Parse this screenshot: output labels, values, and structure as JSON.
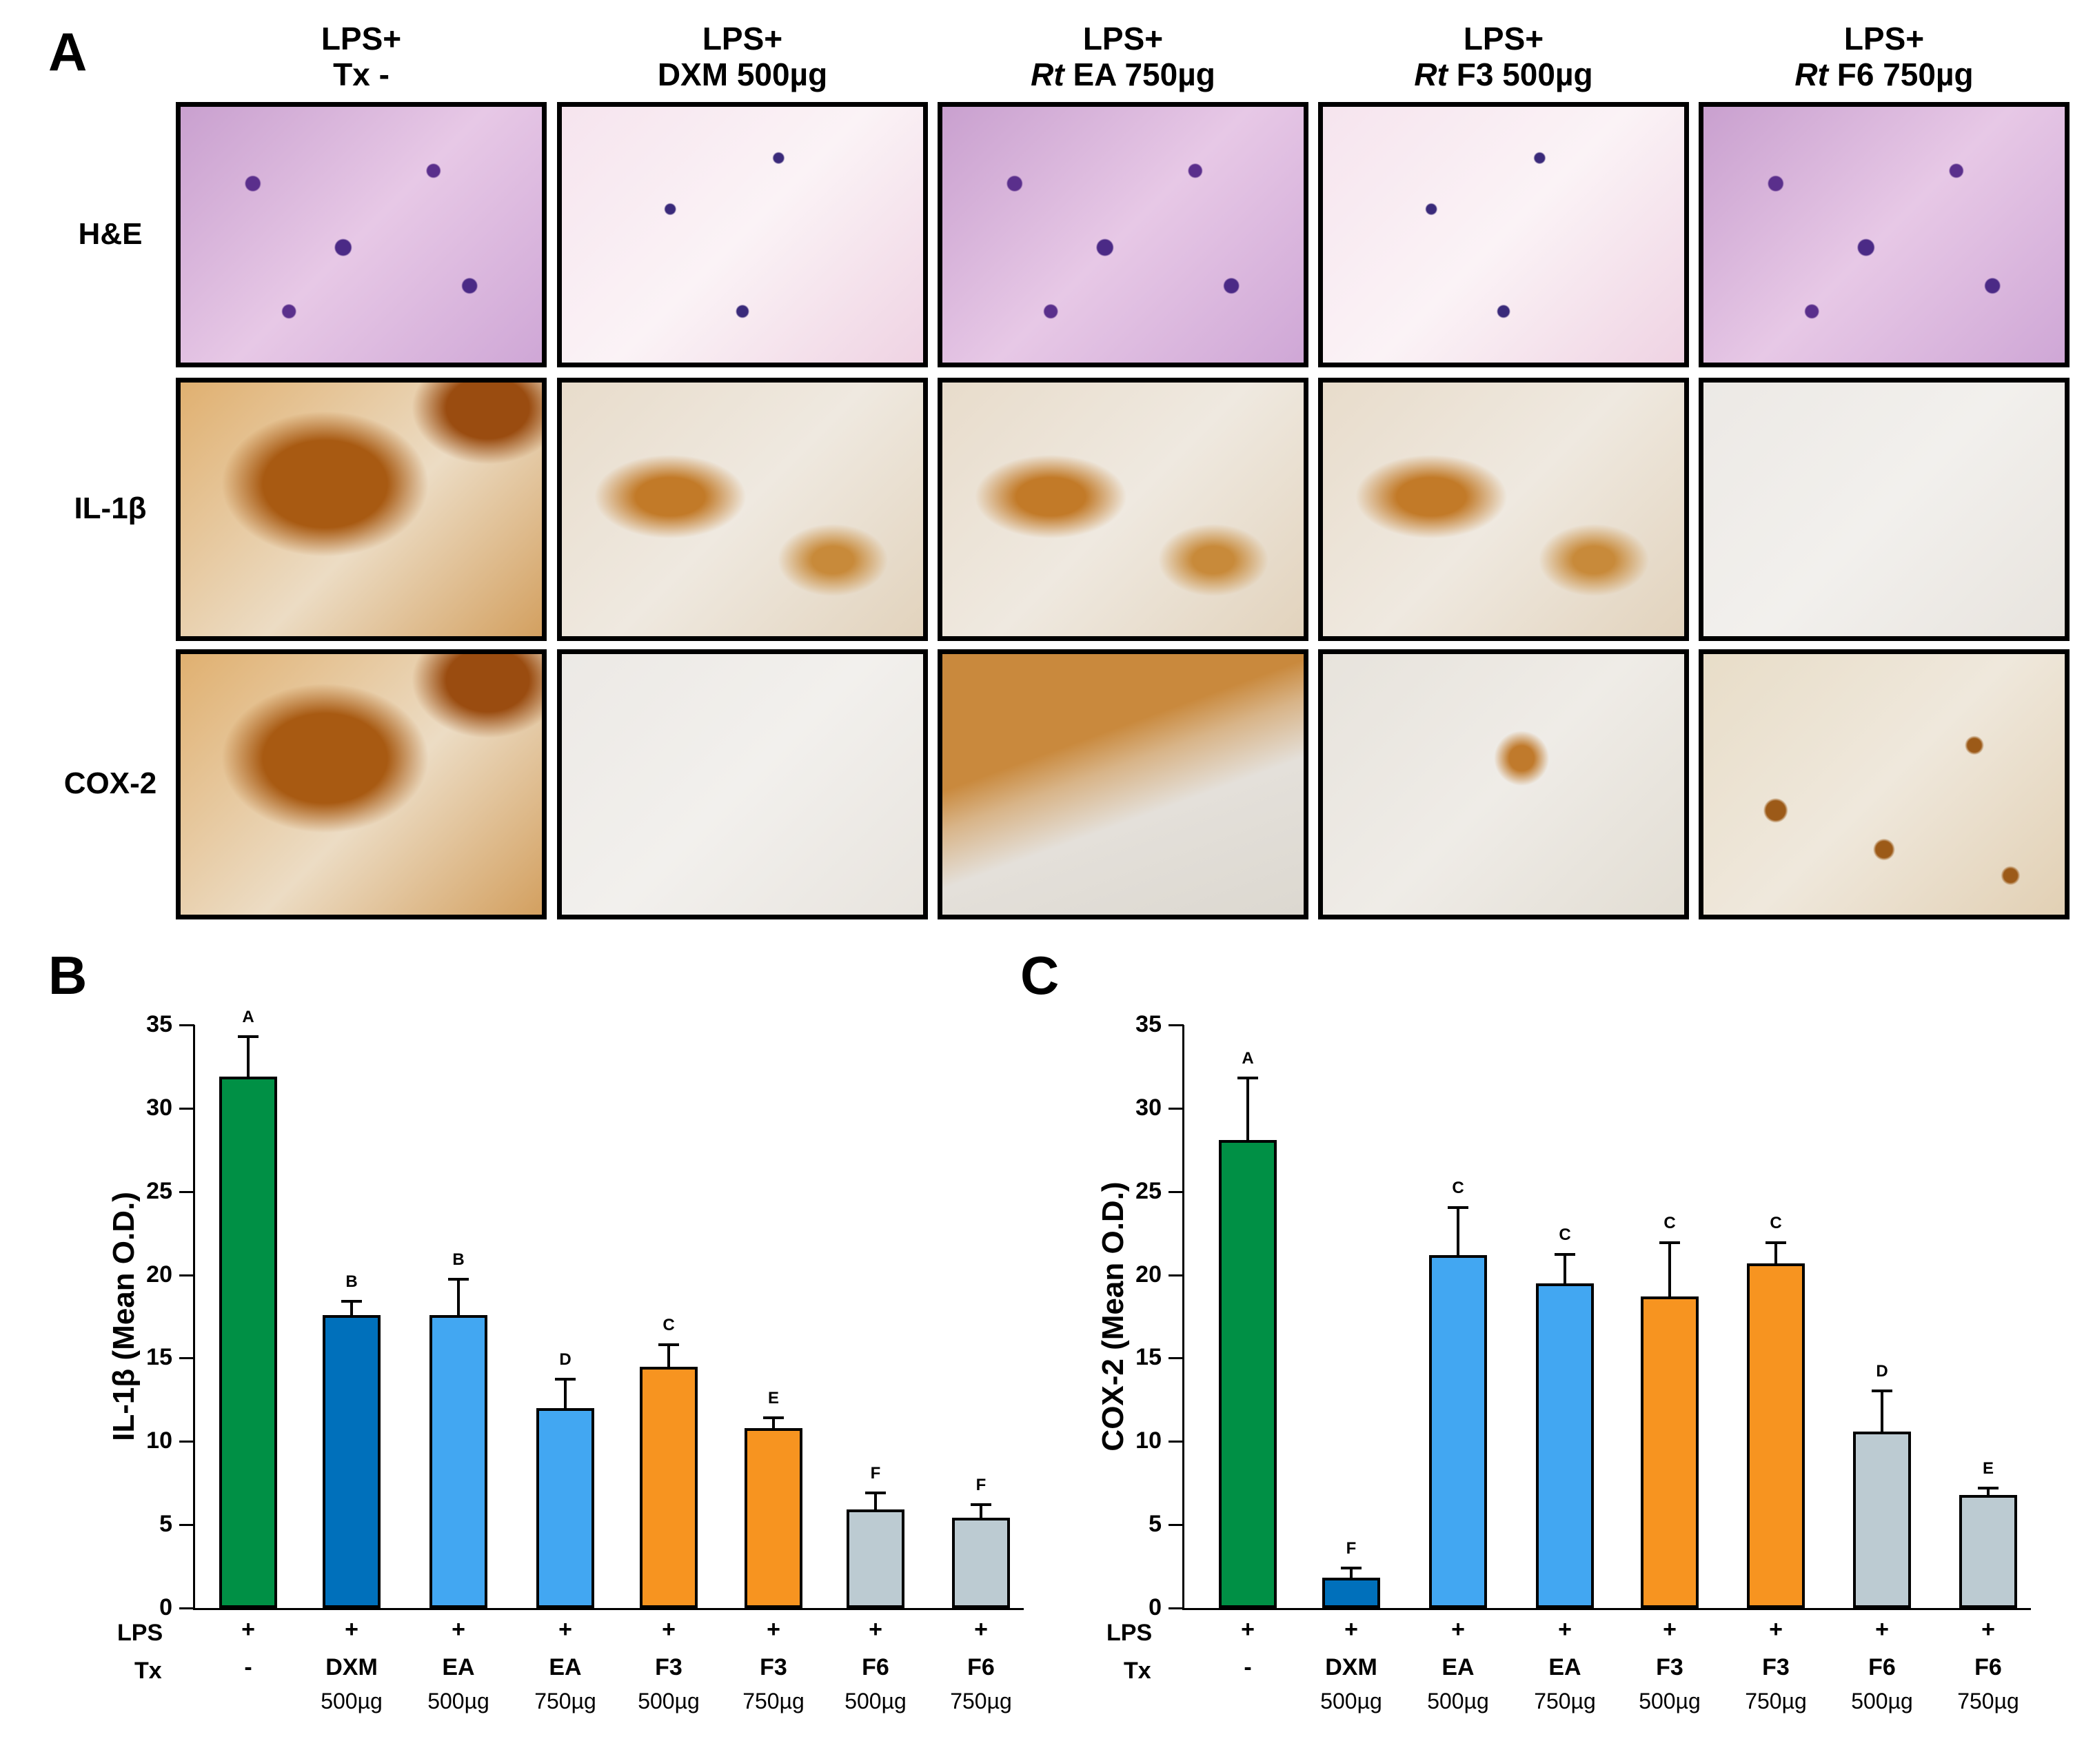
{
  "panel_a": {
    "letter": "A",
    "columns": [
      {
        "line1": "LPS+",
        "italic": "",
        "line2": "Tx -"
      },
      {
        "line1": "LPS+",
        "italic": "",
        "line2": "DXM 500µg"
      },
      {
        "line1": "LPS+",
        "italic": "Rt",
        "line2": " EA 750µg"
      },
      {
        "line1": "LPS+",
        "italic": "Rt",
        "line2": " F3 500µg"
      },
      {
        "line1": "LPS+",
        "italic": "Rt",
        "line2": " F6 750µg"
      }
    ],
    "rows": [
      {
        "label": "H&E"
      },
      {
        "label": "IL-1β"
      },
      {
        "label": "COX-2"
      }
    ]
  },
  "chart_data": [
    {
      "panel": "B",
      "type": "bar",
      "title": "",
      "xlabel": "",
      "ylabel": "IL-1β (Mean O.D.)",
      "ylim": [
        0,
        35
      ],
      "yticks": [
        0,
        5,
        10,
        15,
        20,
        25,
        30,
        35
      ],
      "grid": false,
      "legend": null,
      "x_rows": {
        "LPS": [
          "+",
          "+",
          "+",
          "+",
          "+",
          "+",
          "+",
          "+"
        ],
        "Tx": [
          "-",
          "DXM",
          "EA",
          "EA",
          "F3",
          "F3",
          "F6",
          "F6"
        ],
        "dose": [
          "",
          "500µg",
          "500µg",
          "750µg",
          "500µg",
          "750µg",
          "500µg",
          "750µg"
        ]
      },
      "categories": [
        "Tx -",
        "DXM 500µg",
        "EA 500µg",
        "EA 750µg",
        "F3 500µg",
        "F3 750µg",
        "F6 500µg",
        "F6 750µg"
      ],
      "values": [
        31.9,
        17.6,
        17.6,
        12.0,
        14.5,
        10.8,
        5.9,
        5.4
      ],
      "error_upper": [
        34.4,
        18.5,
        19.8,
        13.8,
        15.9,
        11.5,
        7.0,
        6.3
      ],
      "significance": [
        "A",
        "B",
        "B",
        "D",
        "C",
        "E",
        "F",
        "F"
      ],
      "colors": [
        "#009045",
        "#0070bb",
        "#42a7f2",
        "#42a7f2",
        "#f79420",
        "#f79420",
        "#bccbd2",
        "#bccbd2"
      ]
    },
    {
      "panel": "C",
      "type": "bar",
      "title": "",
      "xlabel": "",
      "ylabel": "COX-2 (Mean O.D.)",
      "ylim": [
        0,
        35
      ],
      "yticks": [
        0,
        5,
        10,
        15,
        20,
        25,
        30,
        35
      ],
      "grid": false,
      "legend": null,
      "x_rows": {
        "LPS": [
          "+",
          "+",
          "+",
          "+",
          "+",
          "+",
          "+",
          "+"
        ],
        "Tx": [
          "-",
          "DXM",
          "EA",
          "EA",
          "F3",
          "F3",
          "F6",
          "F6"
        ],
        "dose": [
          "",
          "500µg",
          "500µg",
          "750µg",
          "500µg",
          "750µg",
          "500µg",
          "750µg"
        ]
      },
      "categories": [
        "Tx -",
        "DXM 500µg",
        "EA 500µg",
        "EA 750µg",
        "F3 500µg",
        "F3 750µg",
        "F6 500µg",
        "F6 750µg"
      ],
      "values": [
        28.1,
        1.8,
        21.2,
        19.5,
        18.7,
        20.7,
        10.6,
        6.8
      ],
      "error_upper": [
        31.9,
        2.5,
        24.1,
        21.3,
        22.0,
        22.0,
        13.1,
        7.3
      ],
      "significance": [
        "A",
        "F",
        "C",
        "C",
        "C",
        "C",
        "D",
        "E"
      ],
      "colors": [
        "#009045",
        "#0070bb",
        "#42a7f2",
        "#42a7f2",
        "#f79420",
        "#f79420",
        "#bccbd2",
        "#bccbd2"
      ]
    }
  ],
  "labels": {
    "panel_b": "B",
    "panel_c": "C",
    "lps_row": "LPS",
    "tx_row": "Tx"
  }
}
